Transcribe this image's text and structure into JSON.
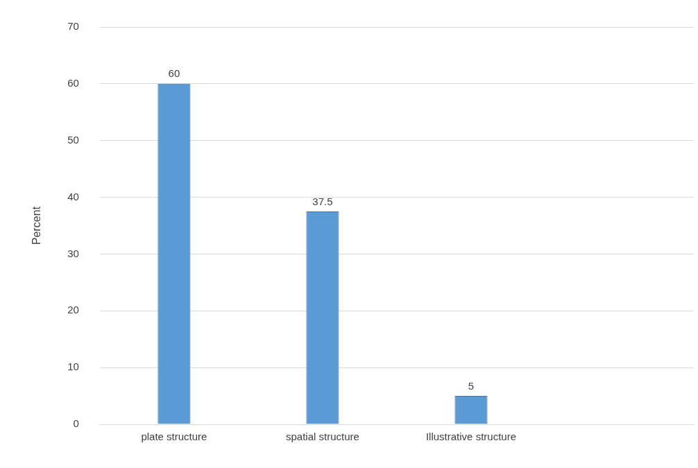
{
  "chart_data": {
    "type": "bar",
    "ylabel": "Percent",
    "categories": [
      "plate structure",
      "spatial structure",
      "Illustrative structure",
      null
    ],
    "values": [
      60,
      37.5,
      5,
      null
    ],
    "color": "#5b9bd5",
    "ylim": [
      0,
      70
    ],
    "yticks": [
      0,
      10,
      20,
      30,
      40,
      50,
      60,
      70
    ],
    "grid": "y",
    "data_labels": true,
    "legend": false
  }
}
